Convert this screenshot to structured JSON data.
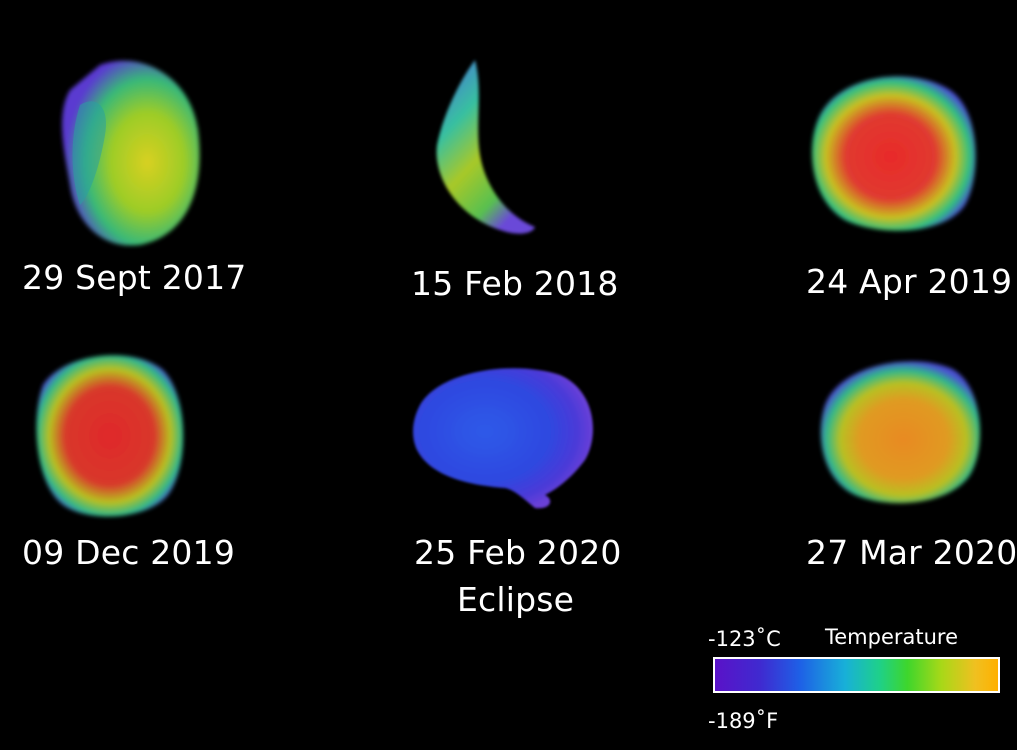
{
  "images": [
    {
      "caption": "29 Sept 2017"
    },
    {
      "caption": "15 Feb 2018"
    },
    {
      "caption": "24 Apr 2019"
    },
    {
      "caption": "09 Dec 2019"
    },
    {
      "caption": "25 Feb 2020",
      "caption_line2": "Eclipse"
    },
    {
      "caption": "27 Mar 2020"
    }
  ],
  "legend": {
    "title": "Temperature",
    "celsius_label": "-123˚C",
    "fahrenheit_label": "-189˚F"
  }
}
